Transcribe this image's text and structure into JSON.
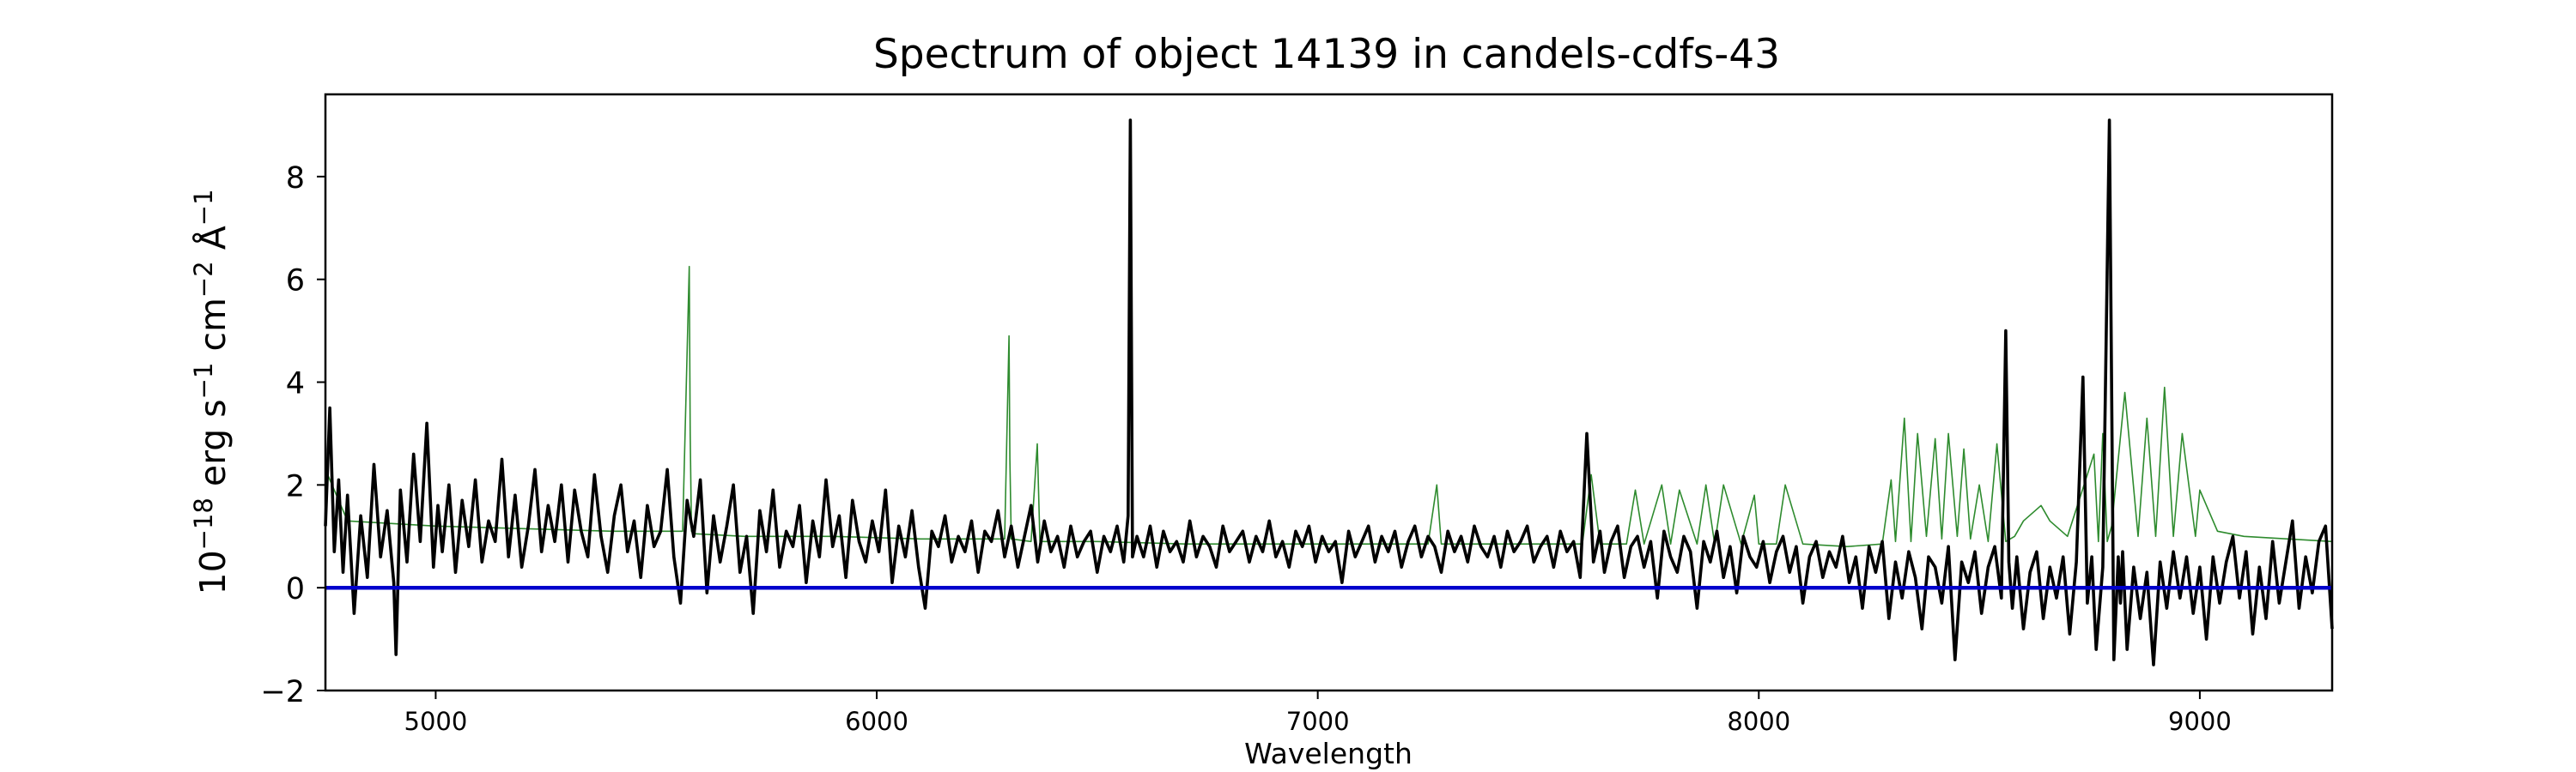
{
  "chart_data": {
    "type": "line",
    "title": "Spectrum of object 14139 in candels-cdfs-43",
    "xlabel": "Wavelength",
    "ylabel": {
      "base": "10",
      "exp1": "−18",
      "unit1": " erg s",
      "exp2": "−1",
      "unit2": " cm",
      "exp3": "−2",
      "unit3": " Å",
      "exp4": "−1"
    },
    "xlim": [
      4750,
      9300
    ],
    "ylim": [
      -2,
      9.6
    ],
    "xticks": [
      {
        "value": 5000,
        "label": "5000"
      },
      {
        "value": 6000,
        "label": "6000"
      },
      {
        "value": 7000,
        "label": "7000"
      },
      {
        "value": 8000,
        "label": "8000"
      },
      {
        "value": 9000,
        "label": "9000"
      }
    ],
    "yticks": [
      {
        "value": -2,
        "label": "−2"
      },
      {
        "value": 0,
        "label": "0"
      },
      {
        "value": 2,
        "label": "2"
      },
      {
        "value": 4,
        "label": "4"
      },
      {
        "value": 6,
        "label": "6"
      },
      {
        "value": 8,
        "label": "8"
      }
    ],
    "grid": false,
    "legend": "none",
    "colors": {
      "flux": "#000000",
      "sky": "#2e8b2e",
      "zero": "#0000cc",
      "axes": "#000000"
    },
    "series": [
      {
        "key": "sky",
        "style": "thin-green",
        "x": [
          4750,
          4800,
          5000,
          5200,
          5400,
          5560,
          5575,
          5577,
          5580,
          5590,
          5700,
          5900,
          6100,
          6290,
          6300,
          6302,
          6305,
          6350,
          6364,
          6370,
          6500,
          6700,
          6900,
          7100,
          7250,
          7270,
          7280,
          7300,
          7400,
          7500,
          7600,
          7620,
          7640,
          7700,
          7720,
          7740,
          7780,
          7800,
          7820,
          7860,
          7880,
          7900,
          7920,
          7960,
          7990,
          8000,
          8040,
          8060,
          8100,
          8200,
          8280,
          8300,
          8310,
          8330,
          8345,
          8360,
          8380,
          8400,
          8415,
          8430,
          8450,
          8465,
          8480,
          8500,
          8520,
          8540,
          8560,
          8580,
          8600,
          8640,
          8660,
          8700,
          8760,
          8770,
          8780,
          8790,
          8800,
          8830,
          8860,
          8880,
          8900,
          8920,
          8940,
          8960,
          8990,
          9000,
          9040,
          9100,
          9200,
          9300
        ],
        "y": [
          2.3,
          1.3,
          1.2,
          1.15,
          1.1,
          1.1,
          6.25,
          3.0,
          1.1,
          1.05,
          1.0,
          1.0,
          0.95,
          0.95,
          4.9,
          2.5,
          0.95,
          0.9,
          2.8,
          0.9,
          0.9,
          0.85,
          0.85,
          0.85,
          0.85,
          2.0,
          0.85,
          0.85,
          0.85,
          0.85,
          0.85,
          2.2,
          0.85,
          0.85,
          1.9,
          0.85,
          2.0,
          0.85,
          1.9,
          0.85,
          2.0,
          0.85,
          2.0,
          0.85,
          1.8,
          0.85,
          0.85,
          2.0,
          0.85,
          0.8,
          0.85,
          2.1,
          0.9,
          3.3,
          0.9,
          3.0,
          1.0,
          2.9,
          0.95,
          3.0,
          1.0,
          2.7,
          0.95,
          2.0,
          0.9,
          2.8,
          0.9,
          1.0,
          1.3,
          1.6,
          1.3,
          1.0,
          2.6,
          0.9,
          3.0,
          0.9,
          1.2,
          3.8,
          1.0,
          3.3,
          1.0,
          3.9,
          1.0,
          3.0,
          1.0,
          1.9,
          1.1,
          1.0,
          0.95,
          0.9
        ]
      },
      {
        "key": "flux",
        "style": "thick-black",
        "x": [
          4750,
          4760,
          4770,
          4780,
          4790,
          4800,
          4815,
          4830,
          4845,
          4860,
          4875,
          4890,
          4905,
          4910,
          4920,
          4935,
          4950,
          4965,
          4980,
          4995,
          5005,
          5015,
          5030,
          5045,
          5060,
          5075,
          5090,
          5105,
          5120,
          5135,
          5150,
          5165,
          5180,
          5195,
          5210,
          5225,
          5240,
          5255,
          5270,
          5285,
          5300,
          5315,
          5330,
          5345,
          5360,
          5375,
          5390,
          5405,
          5420,
          5435,
          5450,
          5465,
          5480,
          5495,
          5510,
          5525,
          5540,
          5555,
          5570,
          5585,
          5600,
          5615,
          5630,
          5645,
          5660,
          5675,
          5690,
          5705,
          5720,
          5735,
          5750,
          5765,
          5780,
          5795,
          5810,
          5825,
          5840,
          5855,
          5870,
          5885,
          5900,
          5915,
          5930,
          5945,
          5960,
          5975,
          5990,
          6005,
          6020,
          6035,
          6050,
          6065,
          6080,
          6095,
          6110,
          6125,
          6140,
          6155,
          6170,
          6185,
          6200,
          6215,
          6230,
          6245,
          6260,
          6275,
          6290,
          6305,
          6320,
          6335,
          6350,
          6365,
          6380,
          6395,
          6410,
          6425,
          6440,
          6455,
          6470,
          6485,
          6500,
          6515,
          6530,
          6545,
          6560,
          6570,
          6575,
          6580,
          6590,
          6605,
          6620,
          6635,
          6650,
          6665,
          6680,
          6695,
          6710,
          6725,
          6740,
          6755,
          6770,
          6785,
          6800,
          6815,
          6830,
          6845,
          6860,
          6875,
          6890,
          6905,
          6920,
          6935,
          6950,
          6965,
          6980,
          6995,
          7010,
          7025,
          7040,
          7055,
          7070,
          7085,
          7100,
          7115,
          7130,
          7145,
          7160,
          7175,
          7190,
          7205,
          7220,
          7235,
          7250,
          7265,
          7280,
          7295,
          7310,
          7325,
          7340,
          7355,
          7370,
          7385,
          7400,
          7415,
          7430,
          7445,
          7460,
          7475,
          7490,
          7505,
          7520,
          7535,
          7550,
          7565,
          7580,
          7595,
          7610,
          7625,
          7640,
          7650,
          7665,
          7680,
          7695,
          7710,
          7725,
          7740,
          7755,
          7770,
          7785,
          7800,
          7815,
          7830,
          7845,
          7860,
          7875,
          7890,
          7905,
          7920,
          7935,
          7950,
          7965,
          7980,
          7995,
          8010,
          8025,
          8040,
          8055,
          8070,
          8085,
          8100,
          8115,
          8130,
          8145,
          8160,
          8175,
          8190,
          8205,
          8220,
          8235,
          8250,
          8265,
          8280,
          8295,
          8310,
          8325,
          8340,
          8355,
          8370,
          8385,
          8400,
          8415,
          8430,
          8445,
          8460,
          8475,
          8490,
          8505,
          8520,
          8535,
          8550,
          8560,
          8567,
          8575,
          8585,
          8600,
          8615,
          8630,
          8645,
          8660,
          8675,
          8690,
          8705,
          8720,
          8735,
          8745,
          8755,
          8765,
          8780,
          8795,
          8805,
          8815,
          8820,
          8825,
          8835,
          8850,
          8865,
          8880,
          8895,
          8910,
          8925,
          8940,
          8955,
          8970,
          8985,
          9000,
          9015,
          9030,
          9045,
          9060,
          9075,
          9090,
          9105,
          9120,
          9135,
          9150,
          9165,
          9180,
          9195,
          9210,
          9225,
          9240,
          9255,
          9270,
          9285,
          9300
        ],
        "y": [
          1.2,
          3.5,
          0.7,
          2.1,
          0.3,
          1.8,
          -0.5,
          1.4,
          0.2,
          2.4,
          0.6,
          1.5,
          0.1,
          -1.3,
          1.9,
          0.5,
          2.6,
          0.9,
          3.2,
          0.4,
          1.6,
          0.7,
          2.0,
          0.3,
          1.7,
          0.8,
          2.1,
          0.5,
          1.3,
          0.9,
          2.5,
          0.6,
          1.8,
          0.4,
          1.2,
          2.3,
          0.7,
          1.6,
          0.9,
          2.0,
          0.5,
          1.9,
          1.1,
          0.6,
          2.2,
          1.0,
          0.3,
          1.4,
          2.0,
          0.7,
          1.3,
          0.2,
          1.6,
          0.8,
          1.1,
          2.3,
          0.6,
          -0.3,
          1.7,
          1.0,
          2.1,
          -0.1,
          1.4,
          0.5,
          1.2,
          2.0,
          0.3,
          1.0,
          -0.5,
          1.5,
          0.7,
          1.9,
          0.4,
          1.1,
          0.8,
          1.6,
          0.1,
          1.3,
          0.6,
          2.1,
          0.8,
          1.4,
          0.2,
          1.7,
          0.9,
          0.5,
          1.3,
          0.7,
          1.9,
          0.1,
          1.2,
          0.6,
          1.5,
          0.4,
          -0.4,
          1.1,
          0.8,
          1.4,
          0.5,
          1.0,
          0.7,
          1.3,
          0.3,
          1.1,
          0.9,
          1.5,
          0.6,
          1.2,
          0.4,
          1.0,
          1.6,
          0.5,
          1.3,
          0.7,
          1.0,
          0.4,
          1.2,
          0.6,
          0.9,
          1.1,
          0.3,
          1.0,
          0.7,
          1.2,
          0.5,
          1.4,
          9.1,
          0.6,
          1.0,
          0.6,
          1.2,
          0.4,
          1.1,
          0.7,
          0.9,
          0.5,
          1.3,
          0.6,
          1.0,
          0.8,
          0.4,
          1.2,
          0.7,
          0.9,
          1.1,
          0.5,
          1.0,
          0.7,
          1.3,
          0.6,
          0.9,
          0.4,
          1.1,
          0.8,
          1.2,
          0.5,
          1.0,
          0.7,
          0.9,
          0.1,
          1.1,
          0.6,
          0.9,
          1.2,
          0.5,
          1.0,
          0.7,
          1.1,
          0.4,
          0.9,
          1.2,
          0.6,
          1.0,
          0.8,
          0.3,
          1.1,
          0.7,
          1.0,
          0.5,
          1.2,
          0.8,
          0.6,
          1.0,
          0.4,
          1.1,
          0.7,
          0.9,
          1.2,
          0.5,
          0.8,
          1.0,
          0.4,
          1.1,
          0.7,
          0.9,
          0.2,
          3.0,
          0.5,
          1.1,
          0.3,
          0.9,
          1.2,
          0.2,
          0.8,
          1.0,
          0.4,
          0.9,
          -0.2,
          1.1,
          0.6,
          0.3,
          1.0,
          0.7,
          -0.4,
          0.9,
          0.5,
          1.1,
          0.2,
          0.8,
          -0.1,
          1.0,
          0.6,
          0.4,
          0.9,
          0.1,
          0.7,
          1.0,
          0.3,
          0.8,
          -0.3,
          0.6,
          0.9,
          0.2,
          0.7,
          0.4,
          1.0,
          0.1,
          0.6,
          -0.4,
          0.8,
          0.3,
          0.9,
          -0.6,
          0.5,
          -0.2,
          0.7,
          0.2,
          -0.8,
          0.6,
          0.4,
          -0.3,
          0.8,
          -1.4,
          0.5,
          0.1,
          0.7,
          -0.5,
          0.4,
          0.8,
          -0.2,
          5.0,
          0.5,
          -0.4,
          0.6,
          -0.8,
          0.3,
          0.7,
          -0.6,
          0.4,
          -0.2,
          0.6,
          -0.9,
          0.5,
          4.1,
          -0.3,
          0.6,
          -1.2,
          0.4,
          9.1,
          -1.4,
          0.6,
          -0.3,
          0.7,
          -1.2,
          0.4,
          -0.6,
          0.3,
          -1.5,
          0.5,
          -0.4,
          0.7,
          -0.2,
          0.6,
          -0.5,
          0.4,
          -1.0,
          0.6,
          -0.3,
          0.5,
          1.0,
          -0.2,
          0.7,
          -0.9,
          0.4,
          -0.6,
          0.9,
          -0.3,
          0.5,
          1.3,
          -0.4,
          0.6,
          -0.1,
          0.9,
          1.2,
          -0.8
        ]
      },
      {
        "key": "zero",
        "style": "blue-zero",
        "x": [
          4750,
          9300
        ],
        "y": [
          0,
          0
        ]
      }
    ]
  }
}
